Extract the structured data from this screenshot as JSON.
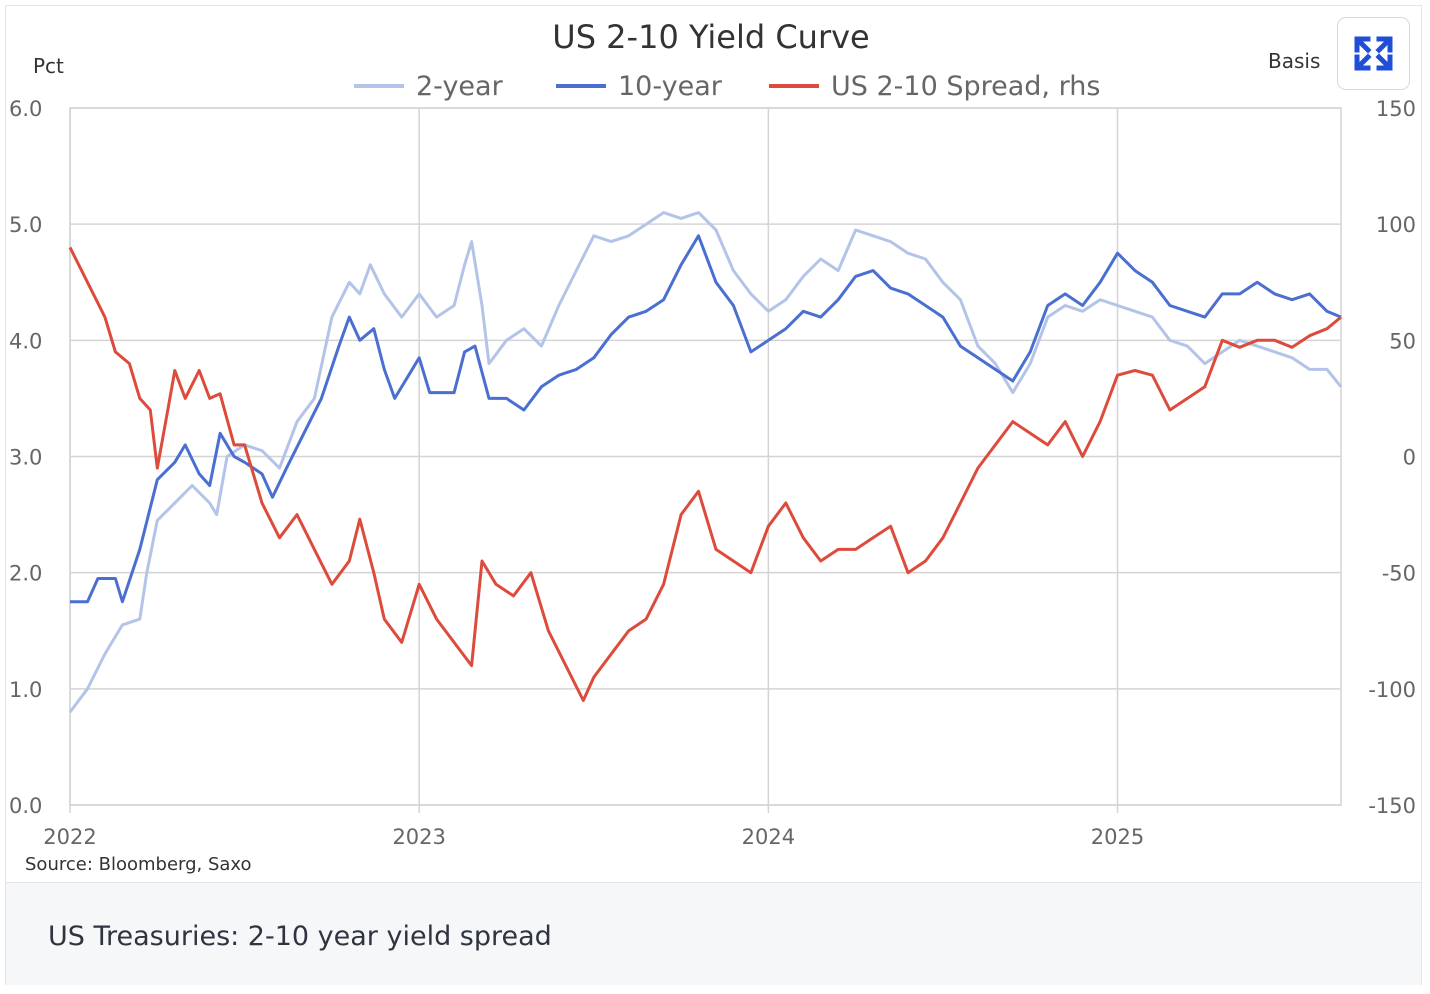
{
  "chart_data": {
    "type": "line",
    "title": "US 2-10 Yield Curve",
    "ylabel_left": "Pct",
    "ylabel_right": "Basis",
    "source": "Source: Bloomberg, Saxo",
    "xlim": [
      2022.0,
      2025.64
    ],
    "ylim_left": [
      0,
      6
    ],
    "ylim_right": [
      -150,
      150
    ],
    "x_ticks": [
      "2022",
      "2023",
      "2024",
      "2025"
    ],
    "x_tick_values": [
      2022,
      2023,
      2024,
      2025
    ],
    "y_ticks_left": [
      "0.0",
      "1.0",
      "2.0",
      "3.0",
      "4.0",
      "5.0",
      "6.0"
    ],
    "y_ticks_right": [
      "-150",
      "-100",
      "-50",
      "0",
      "50",
      "100",
      "150"
    ],
    "grid": true,
    "legend_position": "top",
    "series": [
      {
        "name": "2-year",
        "axis": "left",
        "color": "#b3c4e8",
        "x": [
          2022.0,
          2022.05,
          2022.1,
          2022.15,
          2022.2,
          2022.22,
          2022.25,
          2022.3,
          2022.35,
          2022.4,
          2022.42,
          2022.45,
          2022.5,
          2022.55,
          2022.6,
          2022.65,
          2022.7,
          2022.75,
          2022.8,
          2022.83,
          2022.86,
          2022.9,
          2022.95,
          2023.0,
          2023.05,
          2023.1,
          2023.13,
          2023.15,
          2023.18,
          2023.2,
          2023.25,
          2023.3,
          2023.35,
          2023.4,
          2023.45,
          2023.5,
          2023.55,
          2023.6,
          2023.65,
          2023.7,
          2023.75,
          2023.8,
          2023.85,
          2023.9,
          2023.95,
          2024.0,
          2024.05,
          2024.1,
          2024.15,
          2024.2,
          2024.25,
          2024.3,
          2024.35,
          2024.4,
          2024.45,
          2024.5,
          2024.55,
          2024.6,
          2024.65,
          2024.7,
          2024.75,
          2024.8,
          2024.85,
          2024.9,
          2024.95,
          2025.0,
          2025.05,
          2025.1,
          2025.15,
          2025.2,
          2025.25,
          2025.3,
          2025.35,
          2025.4,
          2025.45,
          2025.5,
          2025.55,
          2025.6,
          2025.64
        ],
        "values": [
          0.8,
          1.0,
          1.3,
          1.55,
          1.6,
          2.0,
          2.45,
          2.6,
          2.75,
          2.6,
          2.5,
          3.0,
          3.1,
          3.05,
          2.9,
          3.3,
          3.5,
          4.2,
          4.5,
          4.4,
          4.65,
          4.4,
          4.2,
          4.4,
          4.2,
          4.3,
          4.65,
          4.85,
          4.3,
          3.8,
          4.0,
          4.1,
          3.95,
          4.3,
          4.6,
          4.9,
          4.85,
          4.9,
          5.0,
          5.1,
          5.05,
          5.1,
          4.95,
          4.6,
          4.4,
          4.25,
          4.35,
          4.55,
          4.7,
          4.6,
          4.95,
          4.9,
          4.85,
          4.75,
          4.7,
          4.5,
          4.35,
          3.95,
          3.8,
          3.55,
          3.8,
          4.2,
          4.3,
          4.25,
          4.35,
          4.3,
          4.25,
          4.2,
          4.0,
          3.95,
          3.8,
          3.9,
          4.0,
          3.95,
          3.9,
          3.85,
          3.75,
          3.75,
          3.6
        ]
      },
      {
        "name": "10-year",
        "axis": "left",
        "color": "#4a6fd0",
        "x": [
          2022.0,
          2022.05,
          2022.08,
          2022.13,
          2022.15,
          2022.2,
          2022.25,
          2022.3,
          2022.33,
          2022.37,
          2022.4,
          2022.43,
          2022.47,
          2022.5,
          2022.55,
          2022.58,
          2022.62,
          2022.67,
          2022.72,
          2022.77,
          2022.8,
          2022.83,
          2022.87,
          2022.9,
          2022.93,
          2022.97,
          2023.0,
          2023.03,
          2023.1,
          2023.13,
          2023.16,
          2023.2,
          2023.25,
          2023.3,
          2023.35,
          2023.4,
          2023.45,
          2023.5,
          2023.55,
          2023.6,
          2023.65,
          2023.7,
          2023.75,
          2023.8,
          2023.85,
          2023.9,
          2023.95,
          2024.0,
          2024.05,
          2024.1,
          2024.15,
          2024.2,
          2024.25,
          2024.3,
          2024.35,
          2024.4,
          2024.45,
          2024.5,
          2024.55,
          2024.6,
          2024.65,
          2024.7,
          2024.75,
          2024.8,
          2024.85,
          2024.9,
          2024.95,
          2025.0,
          2025.05,
          2025.1,
          2025.15,
          2025.2,
          2025.25,
          2025.3,
          2025.35,
          2025.4,
          2025.45,
          2025.5,
          2025.55,
          2025.6,
          2025.64
        ],
        "values": [
          1.75,
          1.75,
          1.95,
          1.95,
          1.75,
          2.2,
          2.8,
          2.95,
          3.1,
          2.85,
          2.75,
          3.2,
          3.0,
          2.95,
          2.85,
          2.65,
          2.9,
          3.2,
          3.5,
          3.95,
          4.2,
          4.0,
          4.1,
          3.75,
          3.5,
          3.7,
          3.85,
          3.55,
          3.55,
          3.9,
          3.95,
          3.5,
          3.5,
          3.4,
          3.6,
          3.7,
          3.75,
          3.85,
          4.05,
          4.2,
          4.25,
          4.35,
          4.65,
          4.9,
          4.5,
          4.3,
          3.9,
          4.0,
          4.1,
          4.25,
          4.2,
          4.35,
          4.55,
          4.6,
          4.45,
          4.4,
          4.3,
          4.2,
          3.95,
          3.85,
          3.75,
          3.65,
          3.9,
          4.3,
          4.4,
          4.3,
          4.5,
          4.75,
          4.6,
          4.5,
          4.3,
          4.25,
          4.2,
          4.4,
          4.4,
          4.5,
          4.4,
          4.35,
          4.4,
          4.25,
          4.2
        ]
      },
      {
        "name": "US 2-10 Spread, rhs",
        "axis": "right",
        "color": "#dc4b3b",
        "x": [
          2022.0,
          2022.05,
          2022.1,
          2022.13,
          2022.17,
          2022.2,
          2022.23,
          2022.25,
          2022.28,
          2022.3,
          2022.33,
          2022.37,
          2022.4,
          2022.43,
          2022.47,
          2022.5,
          2022.55,
          2022.6,
          2022.65,
          2022.7,
          2022.75,
          2022.8,
          2022.83,
          2022.87,
          2022.9,
          2022.95,
          2023.0,
          2023.05,
          2023.1,
          2023.15,
          2023.18,
          2023.22,
          2023.27,
          2023.32,
          2023.37,
          2023.42,
          2023.47,
          2023.5,
          2023.55,
          2023.6,
          2023.65,
          2023.7,
          2023.75,
          2023.8,
          2023.85,
          2023.9,
          2023.95,
          2024.0,
          2024.05,
          2024.1,
          2024.15,
          2024.2,
          2024.25,
          2024.3,
          2024.35,
          2024.4,
          2024.45,
          2024.5,
          2024.55,
          2024.6,
          2024.65,
          2024.7,
          2024.75,
          2024.8,
          2024.85,
          2024.9,
          2024.95,
          2025.0,
          2025.05,
          2025.1,
          2025.15,
          2025.2,
          2025.25,
          2025.3,
          2025.35,
          2025.4,
          2025.45,
          2025.5,
          2025.55,
          2025.6,
          2025.64
        ],
        "values": [
          90,
          75,
          60,
          45,
          40,
          25,
          20,
          -5,
          20,
          37,
          25,
          37,
          25,
          27,
          5,
          5,
          -20,
          -35,
          -25,
          -40,
          -55,
          -45,
          -27,
          -50,
          -70,
          -80,
          -55,
          -70,
          -80,
          -90,
          -45,
          -55,
          -60,
          -50,
          -75,
          -90,
          -105,
          -95,
          -85,
          -75,
          -70,
          -55,
          -25,
          -15,
          -40,
          -45,
          -50,
          -30,
          -20,
          -35,
          -45,
          -40,
          -40,
          -35,
          -30,
          -50,
          -45,
          -35,
          -20,
          -5,
          5,
          15,
          10,
          5,
          15,
          0,
          15,
          35,
          37,
          35,
          20,
          25,
          30,
          50,
          47,
          50,
          50,
          47,
          52,
          55,
          60
        ]
      }
    ]
  },
  "caption": "US Treasuries: 2-10 year yield spread",
  "expand_icon": "expand-arrows-icon"
}
